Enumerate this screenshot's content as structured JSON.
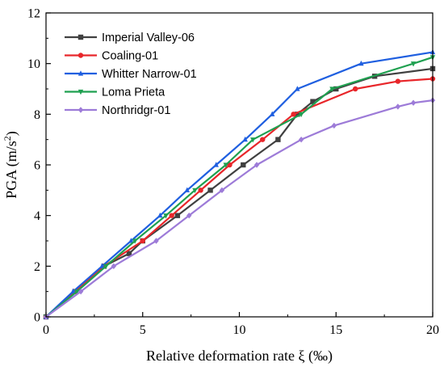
{
  "chart_data": {
    "type": "line",
    "xlabel": "Relative deformation rate ξ (‰)",
    "ylabel_main": "PGA (m/s",
    "ylabel_sup": "2",
    "ylabel_end": ")",
    "xlim": [
      0,
      20
    ],
    "ylim": [
      0,
      12
    ],
    "xticks": [
      0,
      5,
      10,
      15,
      20
    ],
    "yticks": [
      0,
      2,
      4,
      6,
      8,
      10,
      12
    ],
    "grid": false,
    "legend_position": "top-left",
    "series": [
      {
        "name": "Imperial Valley-06",
        "color": "#404040",
        "marker": "square",
        "points": [
          [
            0,
            0
          ],
          [
            1.5,
            1
          ],
          [
            3,
            2
          ],
          [
            4.3,
            2.5
          ],
          [
            5,
            3
          ],
          [
            6.8,
            4
          ],
          [
            8.5,
            5
          ],
          [
            10.2,
            6
          ],
          [
            12,
            7
          ],
          [
            13,
            8
          ],
          [
            13.8,
            8.5
          ],
          [
            15,
            9
          ],
          [
            17,
            9.5
          ],
          [
            20,
            9.8
          ]
        ]
      },
      {
        "name": "Coaling-01",
        "color": "#e8262a",
        "marker": "circle",
        "points": [
          [
            0,
            0
          ],
          [
            1.5,
            1
          ],
          [
            3,
            2
          ],
          [
            5,
            3
          ],
          [
            6.5,
            4
          ],
          [
            8,
            5
          ],
          [
            9.5,
            6
          ],
          [
            11.2,
            7
          ],
          [
            12.8,
            8
          ],
          [
            16,
            9
          ],
          [
            18.2,
            9.3
          ],
          [
            20,
            9.4
          ]
        ]
      },
      {
        "name": "Whitter Narrow-01",
        "color": "#1f5fe0",
        "marker": "triangle-up",
        "points": [
          [
            0,
            0
          ],
          [
            1.4,
            1
          ],
          [
            2.9,
            2
          ],
          [
            4.4,
            3
          ],
          [
            5.9,
            4
          ],
          [
            7.3,
            5
          ],
          [
            8.8,
            6
          ],
          [
            10.3,
            7
          ],
          [
            11.7,
            8
          ],
          [
            13,
            9
          ],
          [
            16.3,
            10
          ],
          [
            20,
            10.45
          ]
        ]
      },
      {
        "name": "Loma Prieta",
        "color": "#1fa050",
        "marker": "triangle-down",
        "points": [
          [
            0,
            0
          ],
          [
            1.6,
            1
          ],
          [
            3.1,
            2
          ],
          [
            4.6,
            3
          ],
          [
            6.2,
            4
          ],
          [
            7.7,
            5
          ],
          [
            9.3,
            6
          ],
          [
            10.7,
            7
          ],
          [
            13.2,
            8
          ],
          [
            14.8,
            9
          ],
          [
            19,
            10
          ],
          [
            20,
            10.25
          ]
        ]
      },
      {
        "name": "Northridgr-01",
        "color": "#9d7bd8",
        "marker": "diamond",
        "points": [
          [
            0,
            0
          ],
          [
            1.8,
            1
          ],
          [
            3.5,
            2
          ],
          [
            5.7,
            3
          ],
          [
            7.4,
            4
          ],
          [
            9.1,
            5
          ],
          [
            10.9,
            6
          ],
          [
            13.2,
            7
          ],
          [
            14.9,
            7.55
          ],
          [
            18.2,
            8.3
          ],
          [
            19,
            8.45
          ],
          [
            20,
            8.55
          ]
        ]
      }
    ]
  }
}
